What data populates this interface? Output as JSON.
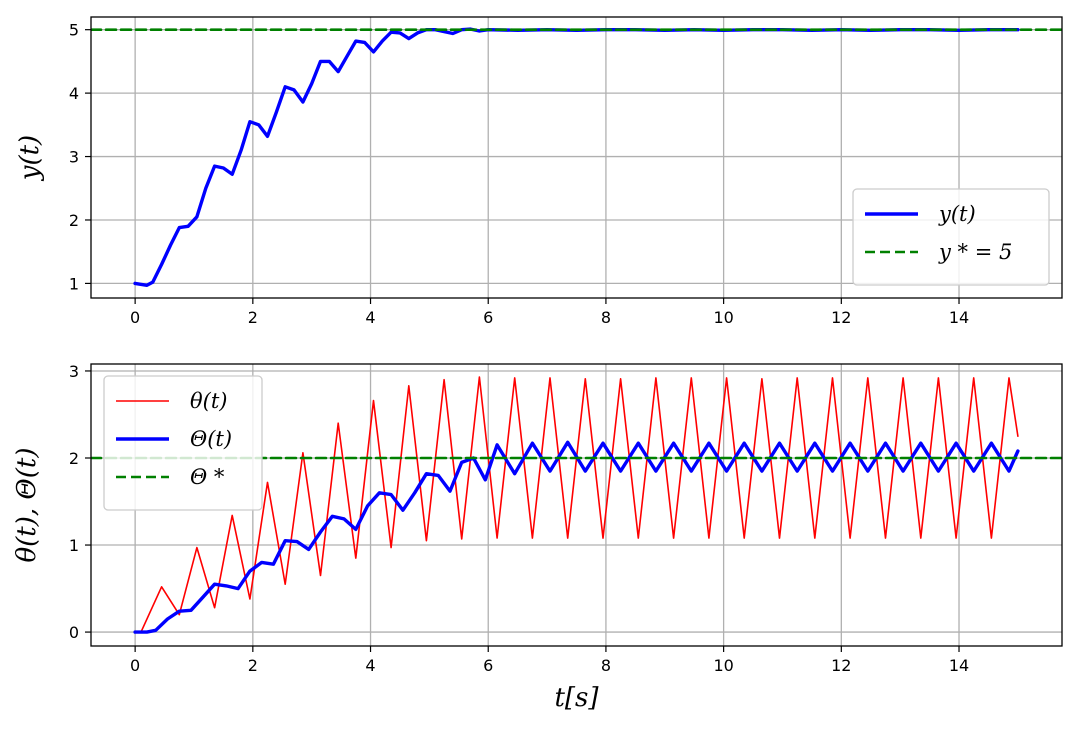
{
  "chart_data": [
    {
      "type": "line",
      "title": "",
      "xlabel": "",
      "ylabel": "y(t)",
      "xlim": [
        -0.75,
        15.75
      ],
      "ylim": [
        0.77,
        5.2
      ],
      "xticks": [
        0,
        2,
        4,
        6,
        8,
        10,
        12,
        14
      ],
      "yticks": [
        1,
        2,
        3,
        4,
        5
      ],
      "grid": true,
      "legend": "lower-right",
      "series": [
        {
          "name": "y(t)",
          "color": "#0000ff",
          "style": "solid",
          "x": [
            0,
            0.2,
            0.3,
            0.45,
            0.6,
            0.75,
            0.9,
            1.05,
            1.2,
            1.35,
            1.5,
            1.65,
            1.8,
            1.95,
            2.1,
            2.25,
            2.4,
            2.55,
            2.7,
            2.85,
            3.0,
            3.15,
            3.3,
            3.45,
            3.6,
            3.75,
            3.9,
            4.05,
            4.2,
            4.35,
            4.5,
            4.65,
            4.8,
            4.95,
            5.1,
            5.25,
            5.4,
            5.55,
            5.7,
            5.85,
            6.0,
            6.5,
            7.0,
            7.5,
            8.0,
            8.5,
            9.0,
            9.5,
            10.0,
            10.5,
            11.0,
            11.5,
            12.0,
            12.5,
            13.0,
            13.5,
            14.0,
            14.5,
            15.0
          ],
          "y": [
            1.0,
            0.97,
            1.02,
            1.3,
            1.6,
            1.88,
            1.9,
            2.05,
            2.5,
            2.85,
            2.82,
            2.72,
            3.1,
            3.55,
            3.5,
            3.32,
            3.7,
            4.1,
            4.05,
            3.86,
            4.15,
            4.5,
            4.5,
            4.34,
            4.58,
            4.82,
            4.8,
            4.65,
            4.82,
            4.96,
            4.95,
            4.86,
            4.95,
            5.0,
            5.0,
            4.97,
            4.94,
            5.0,
            5.01,
            4.98,
            5.0,
            4.99,
            5.0,
            4.99,
            5.0,
            5.0,
            4.99,
            5.0,
            4.99,
            5.0,
            5.0,
            4.99,
            5.0,
            4.99,
            5.0,
            5.0,
            4.99,
            5.0,
            5.0
          ]
        },
        {
          "name": "y * = 5",
          "color": "#008000",
          "style": "dashed",
          "x": [
            -0.75,
            15.75
          ],
          "y": [
            5,
            5
          ]
        }
      ]
    },
    {
      "type": "line",
      "title": "",
      "xlabel": "t[s]",
      "ylabel": "θ(t), Θ(t)",
      "xlim": [
        -0.75,
        15.75
      ],
      "ylim": [
        -0.16,
        3.08
      ],
      "xticks": [
        0,
        2,
        4,
        6,
        8,
        10,
        12,
        14
      ],
      "yticks": [
        0,
        1,
        2,
        3
      ],
      "grid": true,
      "legend": "upper-left",
      "series": [
        {
          "name": "θ(t)",
          "color": "#ff0000",
          "style": "solid",
          "x": [
            0,
            0.1,
            0.45,
            0.75,
            1.05,
            1.35,
            1.65,
            1.95,
            2.25,
            2.55,
            2.85,
            3.15,
            3.45,
            3.75,
            4.05,
            4.35,
            4.65,
            4.95,
            5.25,
            5.55,
            5.85,
            6.15,
            6.45,
            6.75,
            7.05,
            7.35,
            7.65,
            7.95,
            8.25,
            8.55,
            8.85,
            9.15,
            9.45,
            9.75,
            10.05,
            10.35,
            10.65,
            10.95,
            11.25,
            11.55,
            11.85,
            12.15,
            12.45,
            12.75,
            13.05,
            13.35,
            13.65,
            13.95,
            14.25,
            14.55,
            14.85,
            15.0
          ],
          "y": [
            0,
            0,
            0.52,
            0.2,
            0.97,
            0.28,
            1.34,
            0.38,
            1.72,
            0.55,
            2.06,
            0.65,
            2.4,
            0.85,
            2.66,
            0.97,
            2.83,
            1.05,
            2.9,
            1.07,
            2.93,
            1.08,
            2.92,
            1.08,
            2.92,
            1.08,
            2.91,
            1.08,
            2.91,
            1.08,
            2.92,
            1.08,
            2.92,
            1.08,
            2.92,
            1.08,
            2.91,
            1.08,
            2.92,
            1.08,
            2.92,
            1.08,
            2.92,
            1.08,
            2.92,
            1.08,
            2.92,
            1.08,
            2.92,
            1.08,
            2.92,
            2.25
          ]
        },
        {
          "name": "Θ(t)",
          "color": "#0000ff",
          "style": "solid",
          "x": [
            0,
            0.2,
            0.35,
            0.55,
            0.75,
            0.95,
            1.15,
            1.35,
            1.55,
            1.75,
            1.95,
            2.15,
            2.35,
            2.55,
            2.75,
            2.95,
            3.15,
            3.35,
            3.55,
            3.75,
            3.95,
            4.15,
            4.35,
            4.55,
            4.75,
            4.95,
            5.15,
            5.35,
            5.55,
            5.75,
            5.95,
            6.15,
            6.45,
            6.75,
            7.05,
            7.35,
            7.65,
            7.95,
            8.25,
            8.55,
            8.85,
            9.15,
            9.45,
            9.75,
            10.05,
            10.35,
            10.65,
            10.95,
            11.25,
            11.55,
            11.85,
            12.15,
            12.45,
            12.75,
            13.05,
            13.35,
            13.65,
            13.95,
            14.25,
            14.55,
            14.85,
            15.0
          ],
          "y": [
            0,
            0,
            0.02,
            0.15,
            0.24,
            0.25,
            0.4,
            0.55,
            0.53,
            0.5,
            0.7,
            0.8,
            0.78,
            1.05,
            1.04,
            0.95,
            1.15,
            1.33,
            1.3,
            1.18,
            1.45,
            1.6,
            1.58,
            1.4,
            1.6,
            1.82,
            1.8,
            1.62,
            1.95,
            2.0,
            1.75,
            2.15,
            1.82,
            2.17,
            1.85,
            2.18,
            1.85,
            2.17,
            1.85,
            2.17,
            1.85,
            2.17,
            1.85,
            2.17,
            1.85,
            2.17,
            1.85,
            2.17,
            1.85,
            2.17,
            1.85,
            2.17,
            1.85,
            2.17,
            1.85,
            2.17,
            1.85,
            2.17,
            1.85,
            2.17,
            1.85,
            2.08
          ]
        },
        {
          "name": "Θ *",
          "color": "#008000",
          "style": "dashed",
          "x": [
            -0.75,
            15.75
          ],
          "y": [
            2,
            2
          ]
        }
      ]
    }
  ]
}
